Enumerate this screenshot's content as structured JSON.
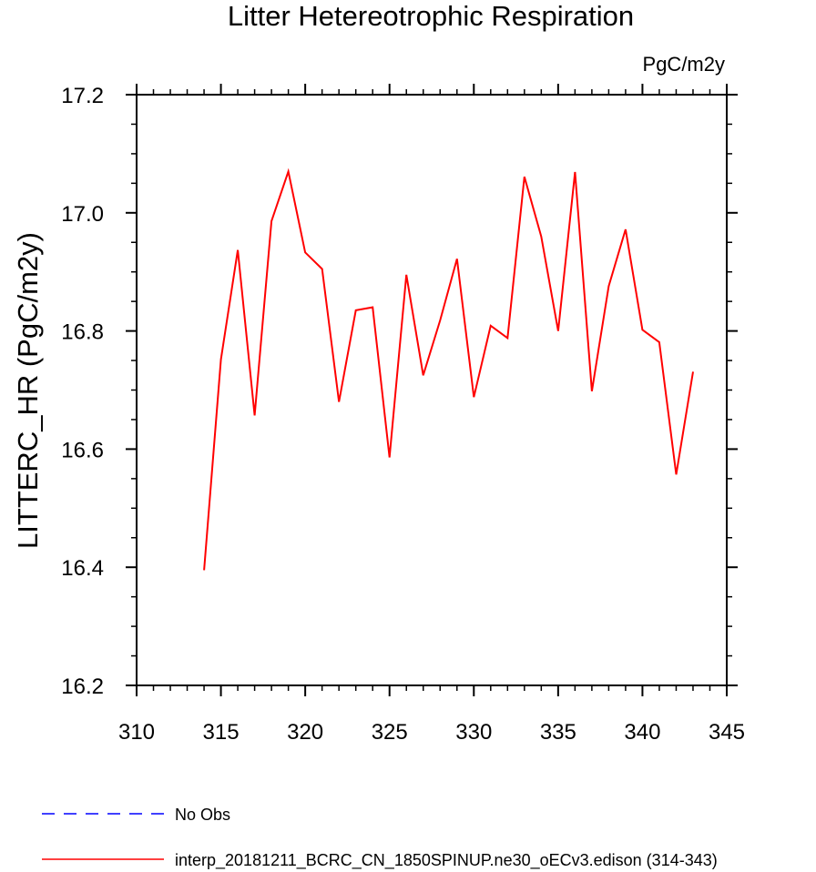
{
  "chart_data": {
    "type": "line",
    "title": "Litter Hetereotrophic Respiration",
    "units_label": "PgC/m2y",
    "xlabel": "",
    "ylabel": "LITTERC_HR  (PgC/m2y)",
    "xlim": [
      310,
      345
    ],
    "ylim": [
      16.2,
      17.2
    ],
    "x_ticks": [
      310,
      315,
      320,
      325,
      330,
      335,
      340,
      345
    ],
    "x_tick_labels": [
      "310",
      "315",
      "320",
      "325",
      "330",
      "335",
      "340",
      "345"
    ],
    "y_ticks": [
      16.2,
      16.4,
      16.6,
      16.8,
      17.0,
      17.2
    ],
    "y_tick_labels": [
      "16.2",
      "16.4",
      "16.6",
      "16.8",
      "17.0",
      "17.2"
    ],
    "grid": false,
    "legend_position": "bottom",
    "series": [
      {
        "name": "interp_20181211_BCRC_CN_1850SPINUP.ne30_oECv3.edison (314-343)",
        "color": "#ff0000",
        "line_style": "solid",
        "x": [
          314,
          315,
          316,
          317,
          318,
          319,
          320,
          321,
          322,
          323,
          324,
          325,
          326,
          327,
          328,
          329,
          330,
          331,
          332,
          333,
          334,
          335,
          336,
          337,
          338,
          339,
          340,
          341,
          342,
          343
        ],
        "y": [
          16.395,
          16.752,
          16.937,
          16.657,
          16.986,
          17.07,
          16.933,
          16.905,
          16.68,
          16.835,
          16.84,
          16.586,
          16.895,
          16.725,
          16.818,
          16.922,
          16.688,
          16.809,
          16.788,
          17.061,
          16.96,
          16.8,
          17.069,
          16.698,
          16.876,
          16.972,
          16.802,
          16.781,
          16.557,
          16.731
        ]
      }
    ],
    "legend": [
      {
        "label": "No Obs",
        "color": "#0000ff",
        "line_style": "dashed"
      },
      {
        "label": "interp_20181211_BCRC_CN_1850SPINUP.ne30_oECv3.edison (314-343)",
        "color": "#ff0000",
        "line_style": "solid"
      }
    ]
  }
}
